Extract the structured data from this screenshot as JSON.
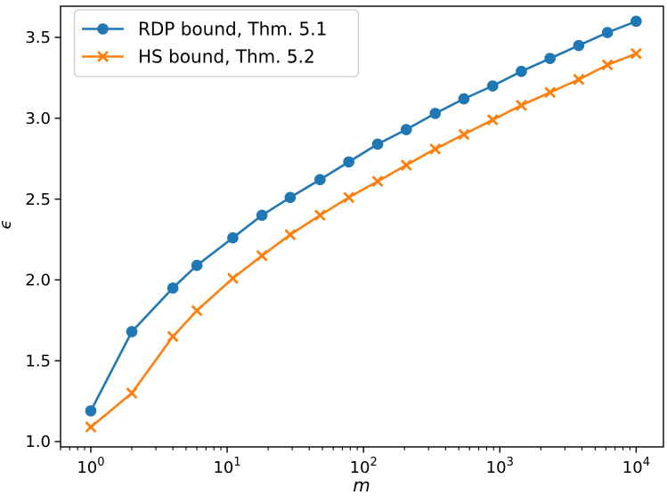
{
  "figure": {
    "background": "#ffffff"
  },
  "chart_data": {
    "type": "line",
    "title": "",
    "xlabel": "m",
    "ylabel": "ϵ",
    "x_scale": "log",
    "y_scale": "linear",
    "xlim": [
      0.6,
      15850
    ],
    "ylim": [
      0.967,
      3.693
    ],
    "grid": false,
    "legend_position": "upper-left",
    "x_major_ticks": [
      {
        "value": 1,
        "base": "10",
        "exp": "0"
      },
      {
        "value": 10,
        "base": "10",
        "exp": "1"
      },
      {
        "value": 100,
        "base": "10",
        "exp": "2"
      },
      {
        "value": 1000,
        "base": "10",
        "exp": "3"
      },
      {
        "value": 10000,
        "base": "10",
        "exp": "4"
      }
    ],
    "y_ticks": [
      {
        "value": 1.0,
        "label": "1.0"
      },
      {
        "value": 1.5,
        "label": "1.5"
      },
      {
        "value": 2.0,
        "label": "2.0"
      },
      {
        "value": 2.5,
        "label": "2.5"
      },
      {
        "value": 3.0,
        "label": "3.0"
      },
      {
        "value": 3.5,
        "label": "3.5"
      }
    ],
    "x": [
      1,
      2,
      4,
      6,
      11,
      18,
      29,
      48,
      78,
      127,
      206,
      336,
      545,
      886,
      1438,
      2335,
      3792,
      6158,
      10000
    ],
    "series": [
      {
        "name": "RDP bound, Thm. 5.1",
        "color": "#1f77b4",
        "marker": "circle",
        "values": [
          1.19,
          1.68,
          1.95,
          2.09,
          2.26,
          2.4,
          2.51,
          2.62,
          2.73,
          2.84,
          2.93,
          3.03,
          3.12,
          3.2,
          3.29,
          3.37,
          3.45,
          3.53,
          3.6
        ]
      },
      {
        "name": "HS bound, Thm. 5.2",
        "color": "#ff7f0e",
        "marker": "x",
        "values": [
          1.09,
          1.3,
          1.65,
          1.81,
          2.01,
          2.15,
          2.28,
          2.4,
          2.51,
          2.61,
          2.71,
          2.81,
          2.9,
          2.99,
          3.08,
          3.16,
          3.24,
          3.33,
          3.4
        ]
      }
    ]
  }
}
